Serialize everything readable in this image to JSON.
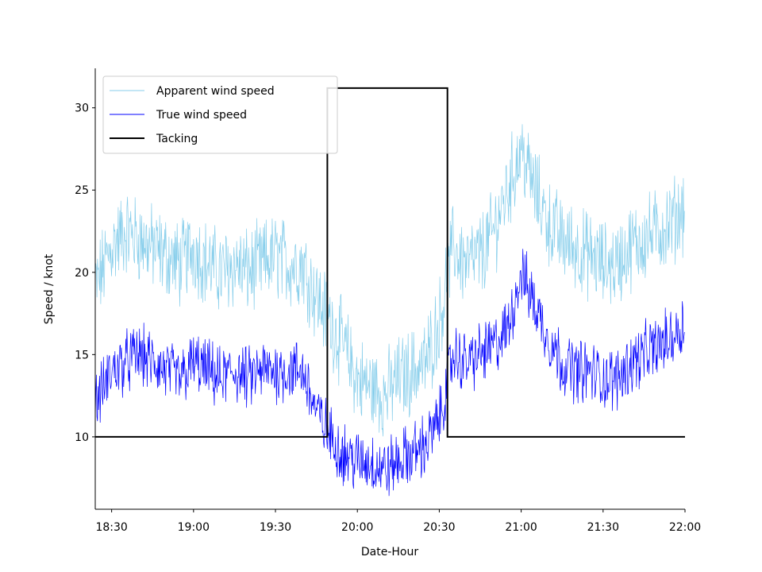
{
  "chart_data": {
    "type": "line",
    "xlabel": "Date-Hour",
    "ylabel": "Speed / knot",
    "x_ticks": [
      "18:30",
      "19:00",
      "19:30",
      "20:00",
      "20:30",
      "21:00",
      "21:30",
      "22:00"
    ],
    "y_ticks": [
      "10",
      "15",
      "20",
      "25",
      "30"
    ],
    "xlim": [
      "18:24",
      "22:00"
    ],
    "ylim": [
      5.6,
      32.4
    ],
    "legend_position": "top-left",
    "series": [
      {
        "name": "Apparent wind speed",
        "color": "#87ceeb",
        "x": [
          "18:24",
          "18:30",
          "18:35",
          "18:40",
          "18:45",
          "18:50",
          "18:55",
          "19:00",
          "19:05",
          "19:10",
          "19:15",
          "19:20",
          "19:25",
          "19:30",
          "19:35",
          "19:40",
          "19:45",
          "19:50",
          "19:55",
          "20:00",
          "20:05",
          "20:10",
          "20:15",
          "20:20",
          "20:25",
          "20:30",
          "20:35",
          "20:40",
          "20:45",
          "20:50",
          "20:55",
          "21:00",
          "21:05",
          "21:10",
          "21:15",
          "21:20",
          "21:25",
          "21:30",
          "21:35",
          "21:40",
          "21:45",
          "21:50",
          "21:55",
          "22:00"
        ],
        "values": [
          19.0,
          21.5,
          22.5,
          22.0,
          21.5,
          21.0,
          20.5,
          21.5,
          20.5,
          20.0,
          20.5,
          20.0,
          20.5,
          21.0,
          20.5,
          20.5,
          18.5,
          17.0,
          15.5,
          13.5,
          13.0,
          12.5,
          13.5,
          14.0,
          14.5,
          17.0,
          21.5,
          20.5,
          21.0,
          22.5,
          25.0,
          27.5,
          25.0,
          23.0,
          22.0,
          21.5,
          21.0,
          20.5,
          20.5,
          21.5,
          22.0,
          22.5,
          23.0,
          24.0
        ]
      },
      {
        "name": "True wind speed",
        "color": "#0000ff",
        "x": [
          "18:24",
          "18:30",
          "18:35",
          "18:40",
          "18:45",
          "18:50",
          "18:55",
          "19:00",
          "19:05",
          "19:10",
          "19:15",
          "19:20",
          "19:25",
          "19:30",
          "19:35",
          "19:40",
          "19:45",
          "19:50",
          "19:55",
          "20:00",
          "20:05",
          "20:10",
          "20:15",
          "20:20",
          "20:25",
          "20:30",
          "20:35",
          "20:40",
          "20:45",
          "20:50",
          "20:55",
          "21:00",
          "21:05",
          "21:10",
          "21:15",
          "21:20",
          "21:25",
          "21:30",
          "21:35",
          "21:40",
          "21:45",
          "21:50",
          "21:55",
          "22:00"
        ],
        "values": [
          12.0,
          14.0,
          14.5,
          15.0,
          14.5,
          14.0,
          13.5,
          14.5,
          14.0,
          13.5,
          14.0,
          13.5,
          14.0,
          14.0,
          14.0,
          14.0,
          11.5,
          10.0,
          9.0,
          8.5,
          8.5,
          8.0,
          8.5,
          9.0,
          9.5,
          11.0,
          15.0,
          14.5,
          15.0,
          15.5,
          16.5,
          20.0,
          18.0,
          16.0,
          14.5,
          14.0,
          14.0,
          13.5,
          13.5,
          14.5,
          15.0,
          15.5,
          16.0,
          17.0
        ]
      },
      {
        "name": "Tacking",
        "color": "#000000",
        "x": [
          "18:24",
          "19:49",
          "19:49",
          "20:33",
          "20:33",
          "22:00"
        ],
        "values": [
          10.0,
          10.0,
          31.2,
          31.2,
          10.0,
          10.0
        ]
      }
    ]
  }
}
